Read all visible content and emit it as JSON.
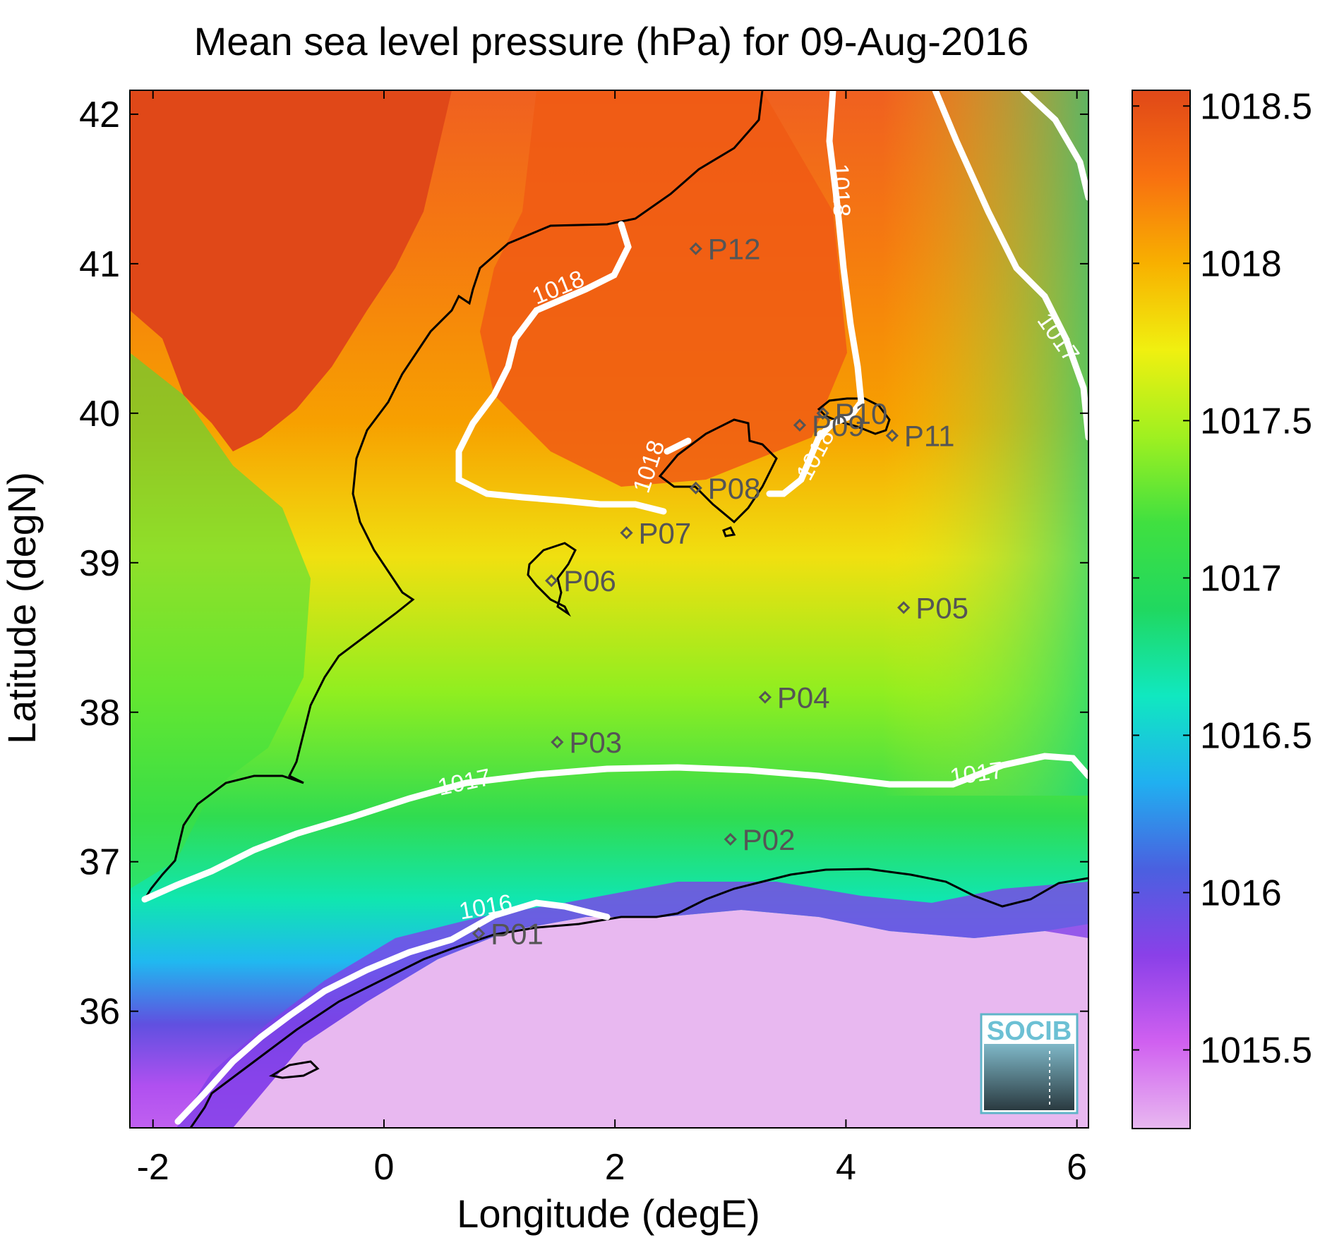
{
  "title": "Mean sea level pressure (hPa) for 09-Aug-2016",
  "x_axis": {
    "label": "Longitude (degE)",
    "range": [
      -2.2,
      6.1
    ],
    "ticks": [
      {
        "v": -2,
        "t": "-2"
      },
      {
        "v": 0,
        "t": "0"
      },
      {
        "v": 2,
        "t": "2"
      },
      {
        "v": 4,
        "t": "4"
      },
      {
        "v": 6,
        "t": "6"
      }
    ]
  },
  "y_axis": {
    "label": "Latitude (degN)",
    "range": [
      35.22,
      42.16
    ],
    "ticks": [
      {
        "v": 36,
        "t": "36"
      },
      {
        "v": 37,
        "t": "37"
      },
      {
        "v": 38,
        "t": "38"
      },
      {
        "v": 39,
        "t": "39"
      },
      {
        "v": 40,
        "t": "40"
      },
      {
        "v": 41,
        "t": "41"
      },
      {
        "v": 42,
        "t": "42"
      }
    ]
  },
  "colorbar": {
    "range": [
      1015.25,
      1018.55
    ],
    "ticks": [
      {
        "v": 1015.5,
        "t": "1015.5"
      },
      {
        "v": 1016,
        "t": "1016"
      },
      {
        "v": 1016.5,
        "t": "1016.5"
      },
      {
        "v": 1017,
        "t": "1017"
      },
      {
        "v": 1017.5,
        "t": "1017.5"
      },
      {
        "v": 1018,
        "t": "1018"
      },
      {
        "v": 1018.5,
        "t": "1018.5"
      }
    ],
    "colors": [
      "#e8b8f0",
      "#d060f0",
      "#8a40e8",
      "#4a60e0",
      "#20b0f0",
      "#10e8c0",
      "#20d860",
      "#40e040",
      "#a0f020",
      "#f0f010",
      "#f8b000",
      "#f87010",
      "#e04818"
    ]
  },
  "stations": [
    {
      "name": "P01",
      "lon": 0.82,
      "lat": 36.52
    },
    {
      "name": "P02",
      "lon": 3.0,
      "lat": 37.15
    },
    {
      "name": "P03",
      "lon": 1.5,
      "lat": 37.8
    },
    {
      "name": "P04",
      "lon": 3.3,
      "lat": 38.1
    },
    {
      "name": "P05",
      "lon": 4.5,
      "lat": 38.7
    },
    {
      "name": "P06",
      "lon": 1.45,
      "lat": 38.88
    },
    {
      "name": "P07",
      "lon": 2.1,
      "lat": 39.2
    },
    {
      "name": "P08",
      "lon": 2.7,
      "lat": 39.5
    },
    {
      "name": "P09",
      "lon": 3.6,
      "lat": 39.92
    },
    {
      "name": "P10",
      "lon": 3.8,
      "lat": 40.0
    },
    {
      "name": "P11",
      "lon": 4.4,
      "lat": 39.85
    },
    {
      "name": "P12",
      "lon": 2.7,
      "lat": 41.1
    }
  ],
  "contour_labels": [
    "1018",
    "1018",
    "1018",
    "1018",
    "1017",
    "1017",
    "1017",
    "1016"
  ],
  "logo": {
    "text": "SOCIB"
  }
}
